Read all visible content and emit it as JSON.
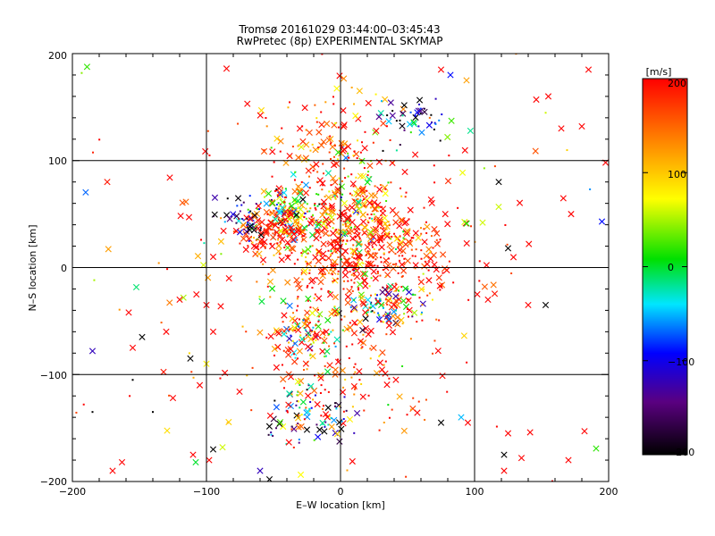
{
  "chart_data": {
    "type": "scatter",
    "title_line1": "Tromsø 20161029 03:44:00–03:45:43",
    "title_line2": "RwPretec (8p) EXPERIMENTAL SKYMAP",
    "xlabel": "E–W location [km]",
    "ylabel": "N–S location [km]",
    "xlim": [
      -200,
      200
    ],
    "ylim": [
      -200,
      200
    ],
    "x_ticks": [
      "−200",
      "−100",
      "0",
      "100",
      "200"
    ],
    "y_ticks": [
      "−200",
      "−100",
      "0",
      "100",
      "200"
    ],
    "grid": true,
    "colorbar": {
      "unit_label": "[m/s]",
      "range": [
        -200,
        200
      ],
      "ticks": [
        "200",
        "100",
        "0",
        "−100",
        "−200"
      ],
      "colormap": "black-purple-blue-cyan-green-yellow-red"
    },
    "marker_kinds": [
      "x",
      "dot"
    ],
    "clusters": [
      {
        "center": [
          -40,
          50
        ],
        "spread": [
          14,
          12
        ],
        "count": 180,
        "value_mean": 80,
        "value_sd": 120
      },
      {
        "center": [
          -50,
          30
        ],
        "spread": [
          18,
          10
        ],
        "count": 90,
        "value_mean": 180,
        "value_sd": 40
      },
      {
        "center": [
          5,
          55
        ],
        "spread": [
          18,
          30
        ],
        "count": 160,
        "value_mean": 120,
        "value_sd": 100
      },
      {
        "center": [
          30,
          10
        ],
        "spread": [
          30,
          20
        ],
        "count": 260,
        "value_mean": 190,
        "value_sd": 30
      },
      {
        "center": [
          35,
          -35
        ],
        "spread": [
          15,
          10
        ],
        "count": 110,
        "value_mean": 60,
        "value_sd": 130
      },
      {
        "center": [
          -25,
          -60
        ],
        "spread": [
          14,
          12
        ],
        "count": 90,
        "value_mean": 60,
        "value_sd": 120
      },
      {
        "center": [
          -20,
          -140
        ],
        "spread": [
          16,
          16
        ],
        "count": 80,
        "value_mean": -60,
        "value_sd": 150
      },
      {
        "center": [
          -15,
          110
        ],
        "spread": [
          25,
          30
        ],
        "count": 120,
        "value_mean": 170,
        "value_sd": 60
      },
      {
        "center": [
          55,
          140
        ],
        "spread": [
          14,
          8
        ],
        "count": 50,
        "value_mean": -120,
        "value_sd": 120
      },
      {
        "center": [
          -20,
          -10
        ],
        "spread": [
          20,
          30
        ],
        "count": 90,
        "value_mean": 170,
        "value_sd": 60
      },
      {
        "center": [
          0,
          -100
        ],
        "spread": [
          30,
          30
        ],
        "count": 110,
        "value_mean": 170,
        "value_sd": 60
      },
      {
        "center": [
          0,
          0
        ],
        "spread": [
          110,
          110
        ],
        "count": 220,
        "value_mean": 160,
        "value_sd": 110
      },
      {
        "center": [
          -75,
          45
        ],
        "spread": [
          8,
          8
        ],
        "count": 35,
        "value_mean": -140,
        "value_sd": 60
      },
      {
        "center": [
          10,
          40
        ],
        "spread": [
          22,
          20
        ],
        "count": 120,
        "value_mean": 150,
        "value_sd": 80
      }
    ],
    "outliers": [
      {
        "x": -174,
        "y": 80,
        "v": 190,
        "m": "x"
      },
      {
        "x": -185,
        "y": -78,
        "v": -120,
        "m": "x"
      },
      {
        "x": -148,
        "y": -65,
        "v": -200,
        "m": "x"
      },
      {
        "x": -155,
        "y": -75,
        "v": 200,
        "m": "x"
      },
      {
        "x": -158,
        "y": -42,
        "v": 200,
        "m": "x"
      },
      {
        "x": -112,
        "y": -85,
        "v": -200,
        "m": "x"
      },
      {
        "x": -110,
        "y": -175,
        "v": 200,
        "m": "x"
      },
      {
        "x": -108,
        "y": -182,
        "v": 0,
        "m": "x"
      },
      {
        "x": -170,
        "y": -190,
        "v": 200,
        "m": "x"
      },
      {
        "x": -163,
        "y": -182,
        "v": 200,
        "m": "x"
      },
      {
        "x": -125,
        "y": -122,
        "v": 200,
        "m": "x"
      },
      {
        "x": -113,
        "y": 47,
        "v": 200,
        "m": "x"
      },
      {
        "x": -120,
        "y": -30,
        "v": 200,
        "m": "x"
      },
      {
        "x": -88,
        "y": -168,
        "v": 60,
        "m": "x"
      },
      {
        "x": -85,
        "y": 186,
        "v": 200,
        "m": "x"
      },
      {
        "x": -53,
        "y": -198,
        "v": -200,
        "m": "x"
      },
      {
        "x": -60,
        "y": -190,
        "v": -120,
        "m": "x"
      },
      {
        "x": 122,
        "y": -175,
        "v": -200,
        "m": "x"
      },
      {
        "x": 122,
        "y": -190,
        "v": 200,
        "m": "x"
      },
      {
        "x": 135,
        "y": -178,
        "v": 200,
        "m": "x"
      },
      {
        "x": 170,
        "y": -180,
        "v": 200,
        "m": "x"
      },
      {
        "x": 182,
        "y": -153,
        "v": 200,
        "m": "x"
      },
      {
        "x": 153,
        "y": -35,
        "v": -200,
        "m": "x"
      },
      {
        "x": 140,
        "y": -35,
        "v": 200,
        "m": "x"
      },
      {
        "x": 185,
        "y": 185,
        "v": 200,
        "m": "x"
      },
      {
        "x": 180,
        "y": 132,
        "v": 200,
        "m": "x"
      },
      {
        "x": 155,
        "y": 160,
        "v": 200,
        "m": "x"
      },
      {
        "x": 146,
        "y": 157,
        "v": 200,
        "m": "x"
      },
      {
        "x": 118,
        "y": 80,
        "v": -200,
        "m": "x"
      },
      {
        "x": 125,
        "y": 18,
        "v": -200,
        "m": "x"
      },
      {
        "x": 195,
        "y": 43,
        "v": -90,
        "m": "x"
      },
      {
        "x": 172,
        "y": 50,
        "v": 200,
        "m": "x"
      },
      {
        "x": 106,
        "y": 42,
        "v": 60,
        "m": "x"
      },
      {
        "x": 102,
        "y": -25,
        "v": 200,
        "m": "x"
      },
      {
        "x": 110,
        "y": -30,
        "v": 200,
        "m": "x"
      },
      {
        "x": 94,
        "y": 175,
        "v": 120,
        "m": "x"
      },
      {
        "x": 75,
        "y": 185,
        "v": 200,
        "m": "x"
      },
      {
        "x": 82,
        "y": 180,
        "v": -90,
        "m": "x"
      },
      {
        "x": 125,
        "y": -155,
        "v": 200,
        "m": "x"
      },
      {
        "x": 95,
        "y": -145,
        "v": 200,
        "m": "x"
      },
      {
        "x": 90,
        "y": -140,
        "v": -50,
        "m": "x"
      },
      {
        "x": 75,
        "y": -145,
        "v": -200,
        "m": "x"
      },
      {
        "x": -95,
        "y": -170,
        "v": -200,
        "m": "x"
      },
      {
        "x": -98,
        "y": -180,
        "v": 200,
        "m": "x"
      },
      {
        "x": -100,
        "y": -90,
        "v": 80,
        "m": "x"
      },
      {
        "x": -105,
        "y": -110,
        "v": 200,
        "m": "x"
      },
      {
        "x": -95,
        "y": -60,
        "v": 200,
        "m": "x"
      },
      {
        "x": -100,
        "y": -35,
        "v": 200,
        "m": "x"
      },
      {
        "x": -95,
        "y": 10,
        "v": 200,
        "m": "x"
      },
      {
        "x": -130,
        "y": -60,
        "v": 200,
        "m": "x"
      },
      {
        "x": -140,
        "y": -135,
        "v": -200,
        "m": "dot"
      },
      {
        "x": -185,
        "y": -135,
        "v": -200,
        "m": "dot"
      },
      {
        "x": -155,
        "y": -105,
        "v": -200,
        "m": "dot"
      }
    ]
  }
}
